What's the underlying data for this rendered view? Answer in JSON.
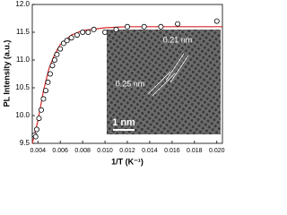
{
  "chart_data": {
    "type": "scatter",
    "y_label": "PL Intensity (a.u.)",
    "x_label": "1/T (K⁻¹)",
    "xlim": [
      0.0035,
      0.0205
    ],
    "ylim": [
      9.5,
      12.0
    ],
    "xticks": [
      0.004,
      0.006,
      0.008,
      {
        "value": 0.01,
        "label": "0.010"
      },
      0.012,
      0.014,
      0.016,
      0.018,
      {
        "value": 0.02,
        "label": "0.020"
      }
    ],
    "yticks": [
      9.5,
      {
        "value": 10,
        "label": "10.0"
      },
      10.5,
      {
        "value": 11,
        "label": "11.0"
      },
      11.5,
      {
        "value": 12,
        "label": "12.0"
      }
    ],
    "x": [
      0.0037,
      0.0038,
      0.0039,
      0.0041,
      0.0043,
      0.0045,
      0.0047,
      0.0049,
      0.0051,
      0.0053,
      0.0055,
      0.0057,
      0.006,
      0.0063,
      0.0066,
      0.007,
      0.0075,
      0.008,
      0.0085,
      0.009,
      0.01,
      0.011,
      0.012,
      0.0135,
      0.015,
      0.0165,
      0.02
    ],
    "values": [
      9.65,
      9.62,
      9.75,
      9.95,
      10.1,
      10.3,
      10.45,
      10.6,
      10.75,
      10.9,
      11.0,
      11.1,
      11.2,
      11.3,
      11.35,
      11.4,
      11.45,
      11.5,
      11.5,
      11.55,
      11.5,
      11.55,
      11.6,
      11.6,
      11.6,
      11.65,
      11.7
    ],
    "color": "#000000",
    "fit": {
      "color": "#d62728",
      "x": [
        0.0035,
        0.004,
        0.0045,
        0.005,
        0.0055,
        0.006,
        0.007,
        0.008,
        0.01,
        0.012,
        0.016,
        0.0205
      ],
      "values": [
        9.5,
        9.9,
        10.45,
        10.85,
        11.1,
        11.28,
        11.45,
        11.53,
        11.58,
        11.6,
        11.6,
        11.6
      ]
    },
    "inset_labels": [
      "0.21 nm",
      "0.25 nm",
      "1 nm"
    ]
  }
}
